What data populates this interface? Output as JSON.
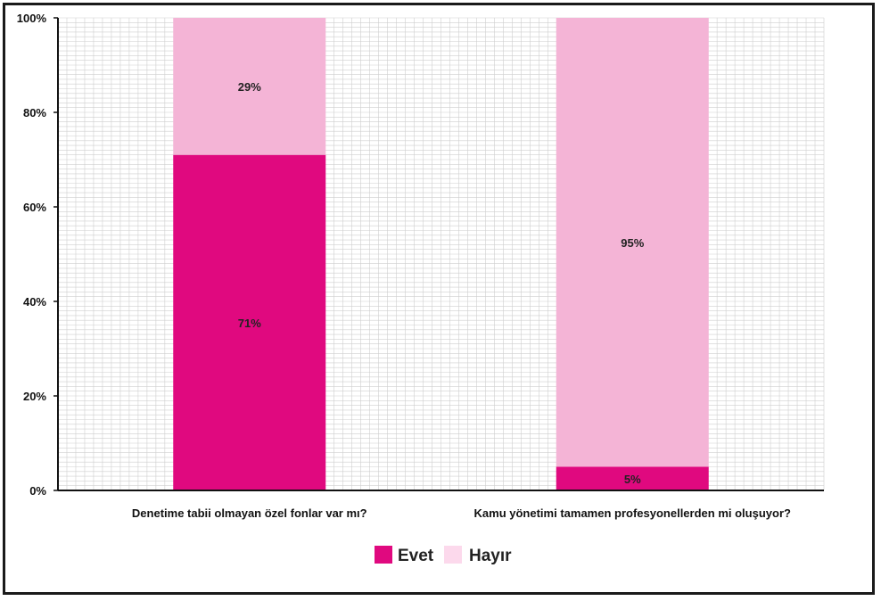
{
  "chart_data": {
    "type": "bar",
    "stacked": true,
    "categories": [
      "Denetime tabii olmayan özel fonlar var mı?",
      "Kamu yönetimi tamamen profesyonellerden mi oluşuyor?"
    ],
    "series": [
      {
        "name": "Evet",
        "values": [
          71,
          5
        ],
        "labels": [
          "71%",
          "5%"
        ],
        "color": "#e0097f"
      },
      {
        "name": "Hayır",
        "values": [
          29,
          95
        ],
        "labels": [
          "29%",
          "95%"
        ],
        "color": "#f4b4d6"
      }
    ],
    "ylim": [
      0,
      100
    ],
    "yticks": [
      "0%",
      "20%",
      "40%",
      "60%",
      "80%",
      "100%"
    ],
    "grid": true,
    "legend_position": "bottom"
  }
}
